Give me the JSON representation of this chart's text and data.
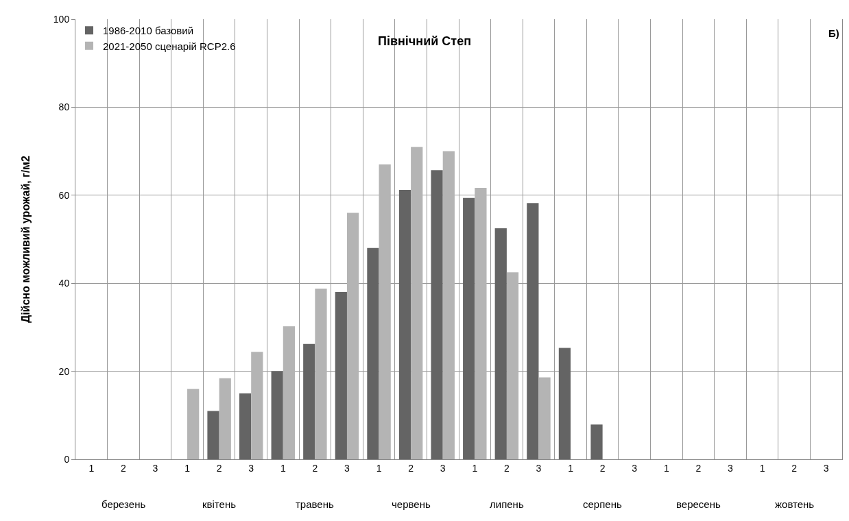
{
  "chart_data": {
    "type": "bar",
    "title": "Північний Степ",
    "ylabel": "Дійсно можливий урожай, г/м2",
    "categories": [
      "1",
      "2",
      "3",
      "1",
      "2",
      "3",
      "1",
      "2",
      "3",
      "1",
      "2",
      "3",
      "1",
      "2",
      "3",
      "1",
      "2",
      "3",
      "1",
      "2",
      "3",
      "1",
      "2",
      "3"
    ],
    "annotations": [
      "березень",
      "квітень",
      "травень",
      "червень",
      "липень",
      "серпень",
      "вересень",
      "жовтень",
      "Б)"
    ],
    "series": [
      {
        "name": "1986-2010 базовий",
        "color": "#646464",
        "values": [
          null,
          null,
          null,
          null,
          11,
          15,
          20,
          26.2,
          38,
          48,
          61.2,
          65.7,
          59.4,
          52.5,
          58.2,
          25.3,
          7.9,
          null,
          null,
          null,
          null,
          null,
          null,
          null
        ]
      },
      {
        "name": "2021-2050 сценарій RCP2.6",
        "color": "#b4b4b4",
        "values": [
          null,
          null,
          null,
          16,
          18.4,
          24.4,
          30.2,
          38.8,
          56,
          67,
          71,
          70,
          61.7,
          42.5,
          18.6,
          null,
          null,
          null,
          null,
          null,
          null,
          null,
          null,
          null
        ]
      }
    ],
    "ylim": [
      0,
      100
    ],
    "yticks": [
      0,
      20,
      40,
      60,
      80,
      100
    ],
    "grid": true,
    "legend": "top left"
  }
}
